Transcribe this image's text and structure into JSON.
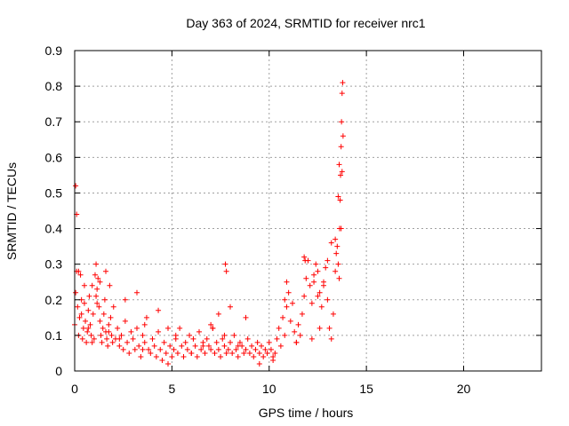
{
  "chart_data": {
    "type": "scatter",
    "title": "Day 363 of 2024, SRMTID for receiver nrc1",
    "xlabel": "GPS time / hours",
    "ylabel": "SRMTID / TECUs",
    "xlim": [
      0,
      24
    ],
    "ylim": [
      0,
      0.9
    ],
    "xticks": [
      0,
      5,
      10,
      15,
      20
    ],
    "yticks": [
      0,
      0.1,
      0.2,
      0.3,
      0.4,
      0.5,
      0.6,
      0.7,
      0.8,
      0.9
    ],
    "grid": true,
    "marker": "+",
    "series": [
      {
        "name": "nrc1",
        "color": "#ff0000",
        "x": [
          0.0,
          0.05,
          0.1,
          0.15,
          0.2,
          0.25,
          0.3,
          0.35,
          0.4,
          0.45,
          0.5,
          0.55,
          0.6,
          0.65,
          0.7,
          0.75,
          0.8,
          0.85,
          0.9,
          0.95,
          1.0,
          1.05,
          1.1,
          1.15,
          1.2,
          1.25,
          1.3,
          1.35,
          1.4,
          1.45,
          1.5,
          1.55,
          1.6,
          1.65,
          1.7,
          1.75,
          1.8,
          1.85,
          1.9,
          1.95,
          2.0,
          2.1,
          2.2,
          2.3,
          2.4,
          2.5,
          2.6,
          2.7,
          2.8,
          2.9,
          3.0,
          3.1,
          3.2,
          3.3,
          3.4,
          3.5,
          3.6,
          3.7,
          3.8,
          3.9,
          4.0,
          4.1,
          4.2,
          4.3,
          4.4,
          4.5,
          4.6,
          4.7,
          4.8,
          4.9,
          5.0,
          5.1,
          5.2,
          5.3,
          5.4,
          5.5,
          5.6,
          5.7,
          5.8,
          5.9,
          6.0,
          6.1,
          6.2,
          6.3,
          6.4,
          6.5,
          6.6,
          6.7,
          6.8,
          6.9,
          7.0,
          7.1,
          7.2,
          7.3,
          7.4,
          7.5,
          7.6,
          7.7,
          7.8,
          7.9,
          8.0,
          8.1,
          8.2,
          8.3,
          8.4,
          8.5,
          8.6,
          8.7,
          8.8,
          8.9,
          9.0,
          9.1,
          9.2,
          9.3,
          9.4,
          9.5,
          9.6,
          9.7,
          9.8,
          9.9,
          10.0,
          10.1,
          10.2,
          10.3,
          10.4,
          10.5,
          10.6,
          10.7,
          10.8,
          10.9,
          11.0,
          11.1,
          11.2,
          11.3,
          11.4,
          11.5,
          11.6,
          11.7,
          11.8,
          11.9,
          12.0,
          12.1,
          12.2,
          12.3,
          12.4,
          12.5,
          12.6,
          12.7,
          12.8,
          12.9,
          13.0,
          13.1,
          13.2,
          13.3,
          13.4,
          13.5,
          13.55,
          13.6,
          13.62,
          13.65,
          13.67,
          13.7,
          13.72,
          13.75,
          13.78,
          13.8,
          0.05,
          0.1,
          0.2,
          0.35,
          0.5,
          0.7,
          0.9,
          1.1,
          1.15,
          1.3,
          1.6,
          1.75,
          2.3,
          2.6,
          3.2,
          3.5,
          3.6,
          4.3,
          4.8,
          5.2,
          6.0,
          6.6,
          7.0,
          7.1,
          7.4,
          7.7,
          7.75,
          7.8,
          8.0,
          8.4,
          8.8,
          9.5,
          10.2,
          10.8,
          10.9,
          11.4,
          11.8,
          11.85,
          12.2,
          12.3,
          12.5,
          12.6,
          12.8,
          13.0,
          13.2,
          13.4,
          13.45,
          13.55,
          13.6,
          13.7,
          13.75
        ],
        "y": [
          0.13,
          0.22,
          0.28,
          0.18,
          0.1,
          0.15,
          0.27,
          0.2,
          0.09,
          0.12,
          0.19,
          0.14,
          0.08,
          0.11,
          0.17,
          0.21,
          0.13,
          0.1,
          0.24,
          0.16,
          0.09,
          0.27,
          0.3,
          0.23,
          0.26,
          0.18,
          0.14,
          0.1,
          0.08,
          0.12,
          0.16,
          0.2,
          0.11,
          0.09,
          0.07,
          0.13,
          0.24,
          0.15,
          0.1,
          0.08,
          0.18,
          0.09,
          0.12,
          0.07,
          0.1,
          0.06,
          0.14,
          0.08,
          0.05,
          0.11,
          0.09,
          0.06,
          0.12,
          0.07,
          0.04,
          0.1,
          0.08,
          0.15,
          0.06,
          0.05,
          0.09,
          0.07,
          0.04,
          0.11,
          0.06,
          0.03,
          0.08,
          0.05,
          0.02,
          0.07,
          0.04,
          0.06,
          0.09,
          0.05,
          0.12,
          0.07,
          0.04,
          0.08,
          0.06,
          0.1,
          0.05,
          0.09,
          0.07,
          0.04,
          0.11,
          0.06,
          0.08,
          0.05,
          0.09,
          0.07,
          0.06,
          0.12,
          0.05,
          0.08,
          0.06,
          0.04,
          0.09,
          0.07,
          0.05,
          0.06,
          0.08,
          0.05,
          0.1,
          0.06,
          0.04,
          0.08,
          0.07,
          0.05,
          0.06,
          0.09,
          0.05,
          0.07,
          0.04,
          0.06,
          0.08,
          0.05,
          0.07,
          0.04,
          0.06,
          0.05,
          0.08,
          0.06,
          0.03,
          0.05,
          0.09,
          0.12,
          0.07,
          0.15,
          0.1,
          0.18,
          0.22,
          0.14,
          0.19,
          0.11,
          0.08,
          0.13,
          0.1,
          0.16,
          0.21,
          0.26,
          0.31,
          0.24,
          0.19,
          0.27,
          0.3,
          0.28,
          0.22,
          0.18,
          0.25,
          0.29,
          0.2,
          0.12,
          0.09,
          0.16,
          0.28,
          0.35,
          0.3,
          0.26,
          0.4,
          0.48,
          0.55,
          0.63,
          0.7,
          0.78,
          0.81,
          0.66,
          0.52,
          0.44,
          0.28,
          0.16,
          0.24,
          0.12,
          0.08,
          0.21,
          0.19,
          0.25,
          0.28,
          0.11,
          0.09,
          0.2,
          0.22,
          0.06,
          0.13,
          0.17,
          0.12,
          0.1,
          0.05,
          0.07,
          0.13,
          0.12,
          0.16,
          0.1,
          0.3,
          0.28,
          0.18,
          0.07,
          0.15,
          0.02,
          0.04,
          0.2,
          0.25,
          0.08,
          0.32,
          0.31,
          0.09,
          0.25,
          0.21,
          0.12,
          0.24,
          0.31,
          0.36,
          0.37,
          0.33,
          0.49,
          0.58,
          0.4,
          0.56
        ]
      }
    ]
  }
}
